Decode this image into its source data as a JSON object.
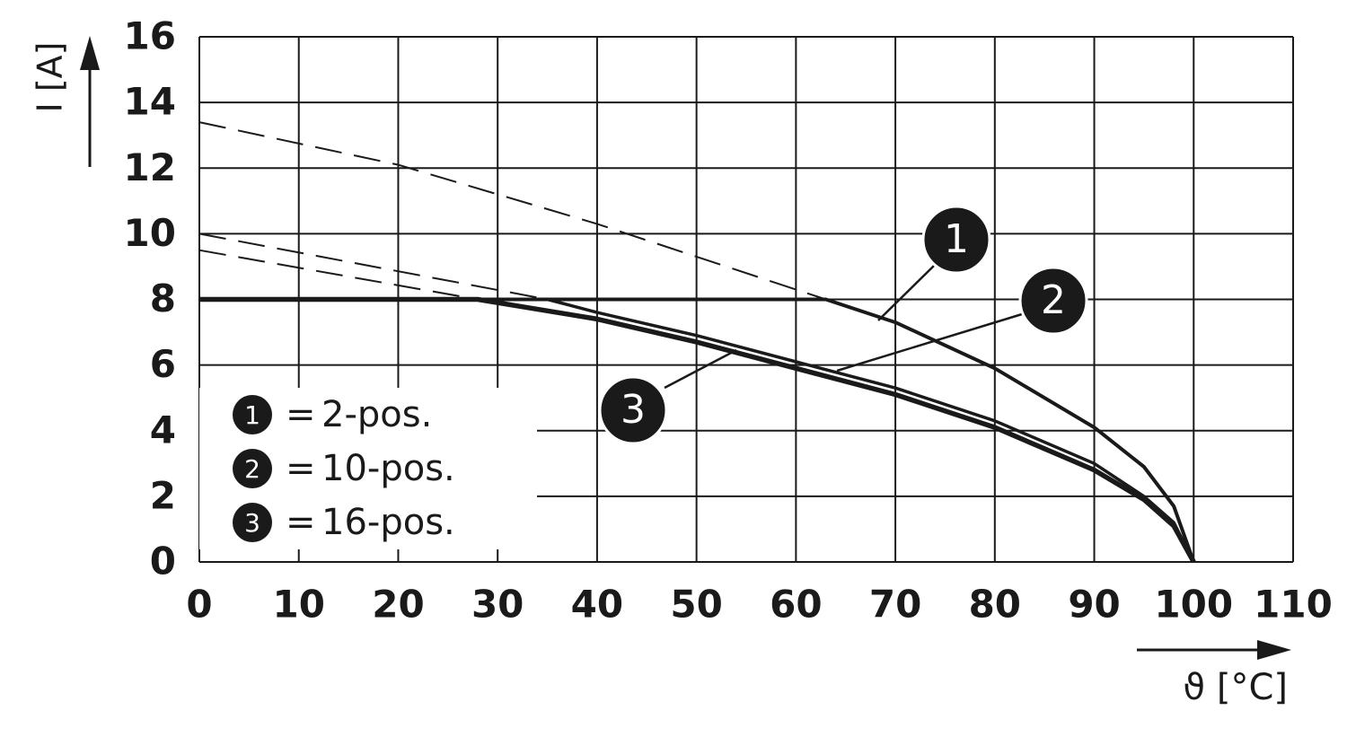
{
  "chart_data": {
    "type": "line",
    "x_label": "ϑ [°C]",
    "y_label": "I [A]",
    "xlim": [
      0,
      110
    ],
    "ylim": [
      0,
      16
    ],
    "xticks": [
      0,
      10,
      20,
      30,
      40,
      50,
      60,
      70,
      80,
      90,
      100,
      110
    ],
    "yticks": [
      0,
      2,
      4,
      6,
      8,
      10,
      12,
      14,
      16
    ],
    "grid": true,
    "legend_position": "lower left",
    "legend_separator": "=",
    "color": "#1a1a1a",
    "series": [
      {
        "name": "2-pos.",
        "marker": "1",
        "x": [
          0,
          63,
          70,
          80,
          90,
          95,
          98,
          100
        ],
        "values": [
          8,
          8,
          7.3,
          5.9,
          4.1,
          2.9,
          1.7,
          0
        ],
        "extension": {
          "x": [
            0,
            20,
            40,
            63
          ],
          "values": [
            13.4,
            12.1,
            10.3,
            8
          ]
        }
      },
      {
        "name": "10-pos.",
        "marker": "2",
        "x": [
          0,
          35,
          40,
          50,
          60,
          70,
          80,
          90,
          95,
          98,
          100
        ],
        "values": [
          8,
          8,
          7.6,
          6.9,
          6.1,
          5.3,
          4.3,
          3.0,
          2.0,
          1.2,
          0
        ],
        "extension": {
          "x": [
            0,
            35
          ],
          "values": [
            10,
            8
          ]
        }
      },
      {
        "name": "16-pos.",
        "marker": "3",
        "x": [
          0,
          28,
          30,
          40,
          50,
          60,
          70,
          80,
          90,
          95,
          98,
          100
        ],
        "values": [
          8,
          8,
          7.9,
          7.4,
          6.7,
          5.9,
          5.1,
          4.1,
          2.8,
          1.9,
          1.1,
          0
        ],
        "extension": {
          "x": [
            0,
            28
          ],
          "values": [
            9.5,
            8
          ]
        }
      }
    ]
  }
}
